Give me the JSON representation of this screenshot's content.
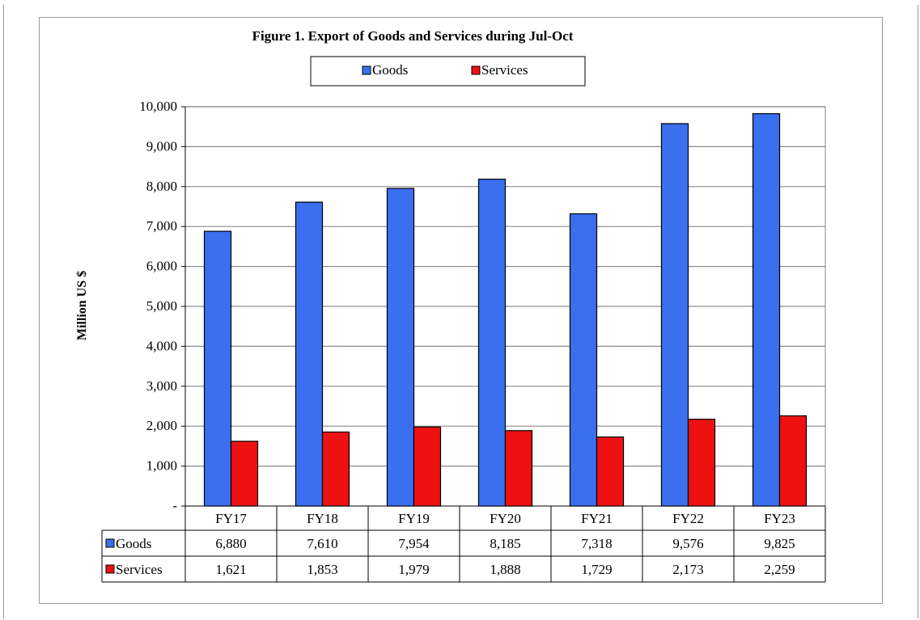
{
  "chart_data": {
    "type": "bar",
    "title": "Figure 1. Export of Goods and Services during Jul-Oct",
    "ylabel": "Million US $",
    "xlabel": "",
    "ylim": [
      0,
      10000
    ],
    "yticks": [
      0,
      1000,
      2000,
      3000,
      4000,
      5000,
      6000,
      7000,
      8000,
      9000,
      10000
    ],
    "ytick_labels": [
      "-",
      "1,000",
      "2,000",
      "3,000",
      "4,000",
      "5,000",
      "6,000",
      "7,000",
      "8,000",
      "9,000",
      "10,000"
    ],
    "categories": [
      "FY17",
      "FY18",
      "FY19",
      "FY20",
      "FY21",
      "FY22",
      "FY23"
    ],
    "series": [
      {
        "name": "Goods",
        "color": "#3a6ff0",
        "values": [
          6880,
          7610,
          7954,
          8185,
          7318,
          9576,
          9825
        ],
        "value_labels": [
          "6,880",
          "7,610",
          "7,954",
          "8,185",
          "7,318",
          "9,576",
          "9,825"
        ]
      },
      {
        "name": "Services",
        "color": "#ee1111",
        "values": [
          1621,
          1853,
          1979,
          1888,
          1729,
          2173,
          2259
        ],
        "value_labels": [
          "1,621",
          "1,853",
          "1,979",
          "1,888",
          "1,729",
          "2,173",
          "2,259"
        ]
      }
    ],
    "grid": true,
    "legend_position": "top-center",
    "data_table": true
  }
}
